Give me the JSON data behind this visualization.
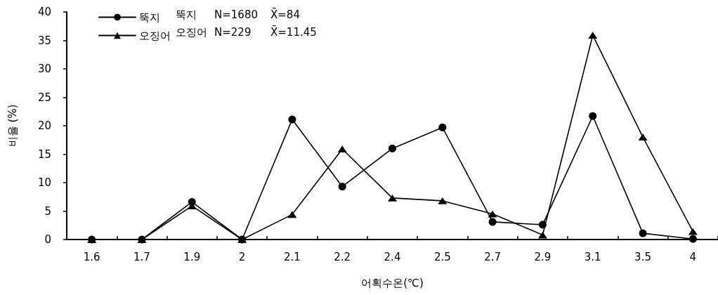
{
  "chart_data": {
    "type": "line",
    "categories": [
      "1.6",
      "1.7",
      "1.9",
      "2",
      "2.1",
      "2.2",
      "2.4",
      "2.5",
      "2.7",
      "2.9",
      "3.1",
      "3.5",
      "4"
    ],
    "series": [
      {
        "name": "뚝지",
        "color": "#000000",
        "marker": "circle",
        "values": [
          0,
          0,
          6.6,
          0,
          21.1,
          9.3,
          16.0,
          19.7,
          3.1,
          2.6,
          21.7,
          1.1,
          0.1
        ]
      },
      {
        "name": "오징어",
        "color": "#000000",
        "marker": "triangle",
        "values": [
          0,
          0,
          5.9,
          0,
          4.4,
          15.9,
          7.3,
          6.8,
          4.5,
          0.8,
          35.9,
          18.0,
          1.4
        ]
      }
    ],
    "xlabel": "어획수온(℃)",
    "ylabel": "비율 (%)",
    "ylim": [
      0,
      40
    ],
    "yticks": [
      0,
      5,
      10,
      15,
      20,
      25,
      30,
      35,
      40
    ],
    "grid": false,
    "legend": "top left",
    "line_style": "solid",
    "annotations": [
      "뚝지 N=1680 X̄=84",
      "오징어 N=229 X̄=11.45"
    ]
  }
}
